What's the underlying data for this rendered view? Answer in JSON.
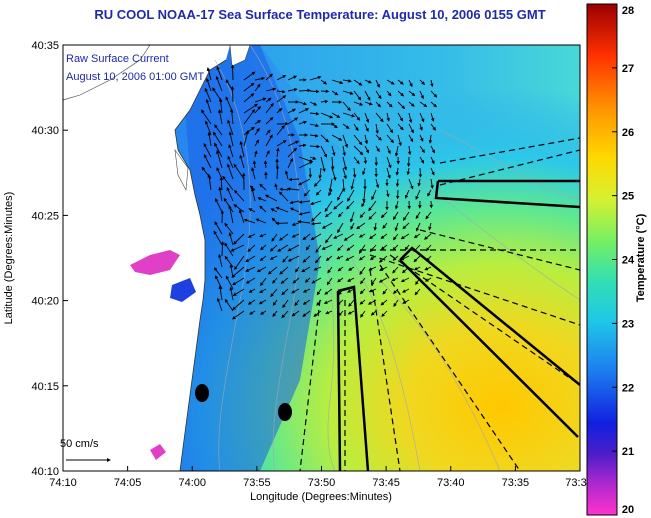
{
  "title": "RU COOL  NOAA-17  Sea Surface Temperature:  August 10, 2006 0155 GMT",
  "overlay": {
    "line1": "Raw Surface Current",
    "line2": "August 10, 2006 01:00 GMT"
  },
  "scale_label": "50 cm/s",
  "x_axis": {
    "title": "Longitude (Degrees:Minutes)",
    "ticks": [
      "74:10",
      "74:05",
      "74:00",
      "73:55",
      "73:50",
      "73:45",
      "73:40",
      "73:35",
      "73:3"
    ]
  },
  "y_axis": {
    "title": "Latitude (Degrees:Minutes)",
    "ticks": [
      "40:35",
      "40:30",
      "40:25",
      "40:20",
      "40:15",
      "40:10"
    ]
  },
  "colorbar": {
    "title": "Temperature (°C)",
    "ticks": [
      "28",
      "27",
      "26",
      "25",
      "24",
      "23",
      "22",
      "21",
      "20"
    ],
    "min": 20,
    "max": 28
  },
  "colors": {
    "title": "#1f2aa8",
    "land": "#ffffff",
    "vectors": "#000000"
  }
}
